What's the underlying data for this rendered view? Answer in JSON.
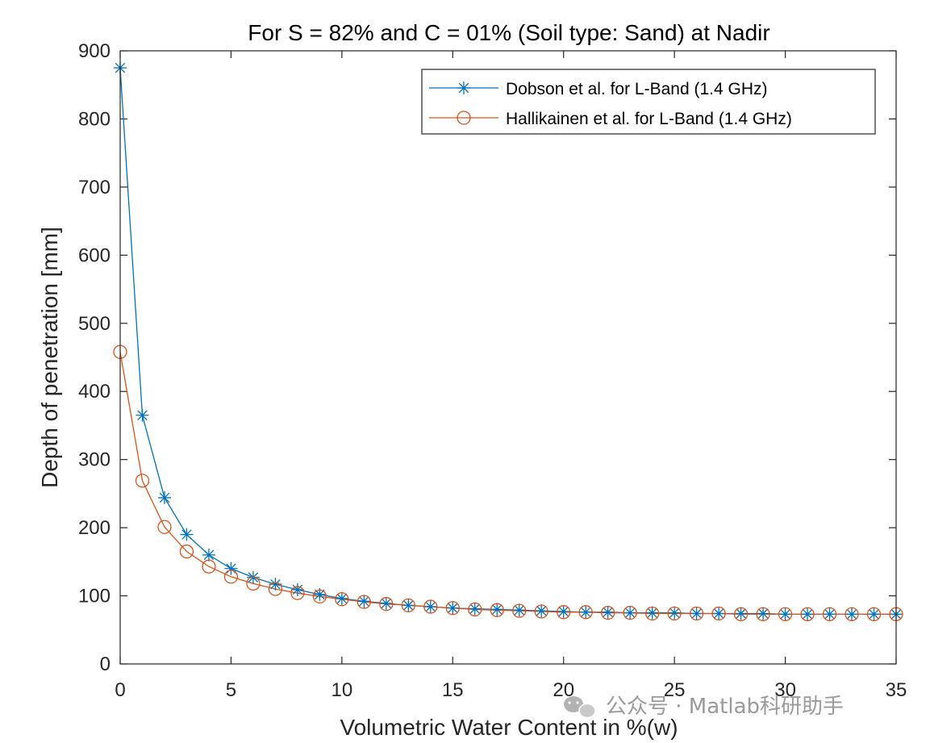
{
  "chart_data": {
    "type": "line",
    "title": "For S = 82% and C = 01% (Soil type: Sand) at Nadir",
    "xlabel": "Volumetric Water Content in %(w)",
    "ylabel": "Depth of penetration [mm]",
    "xlim": [
      0,
      35
    ],
    "ylim": [
      0,
      900
    ],
    "xticks": [
      "0",
      "5",
      "10",
      "15",
      "20",
      "25",
      "30",
      "35"
    ],
    "yticks": [
      "0",
      "100",
      "200",
      "300",
      "400",
      "500",
      "600",
      "700",
      "800",
      "900"
    ],
    "grid": false,
    "legend_position": "top-right",
    "x": [
      0,
      1,
      2,
      3,
      4,
      5,
      6,
      7,
      8,
      9,
      10,
      11,
      12,
      13,
      14,
      15,
      16,
      17,
      18,
      19,
      20,
      21,
      22,
      23,
      24,
      25,
      26,
      27,
      28,
      29,
      30,
      31,
      32,
      33,
      34,
      35
    ],
    "series": [
      {
        "name": "Dobson et al. for L-Band (1.4 GHz)",
        "color": "#0072BD",
        "marker": "asterisk",
        "values": [
          875,
          365,
          244,
          190,
          160,
          140,
          127,
          117,
          109,
          102,
          96,
          92,
          89,
          86,
          84,
          82,
          81,
          80,
          79,
          78,
          77,
          76,
          76,
          75,
          75,
          75,
          74,
          74,
          74,
          74,
          73,
          73,
          73,
          73,
          73,
          73
        ]
      },
      {
        "name": "Hallikainen et al. for L-Band (1.4 GHz)",
        "color": "#D95319",
        "marker": "circle",
        "values": [
          458,
          269,
          201,
          165,
          143,
          128,
          118,
          110,
          104,
          99,
          95,
          91,
          88,
          86,
          84,
          82,
          80,
          79,
          78,
          77,
          76,
          76,
          75,
          75,
          74,
          74,
          74,
          74,
          73,
          73,
          73,
          73,
          73,
          73,
          73,
          73
        ]
      }
    ]
  },
  "watermark": {
    "text": "公众号 · Matlab科研助手",
    "icon": "wechat-icon"
  }
}
